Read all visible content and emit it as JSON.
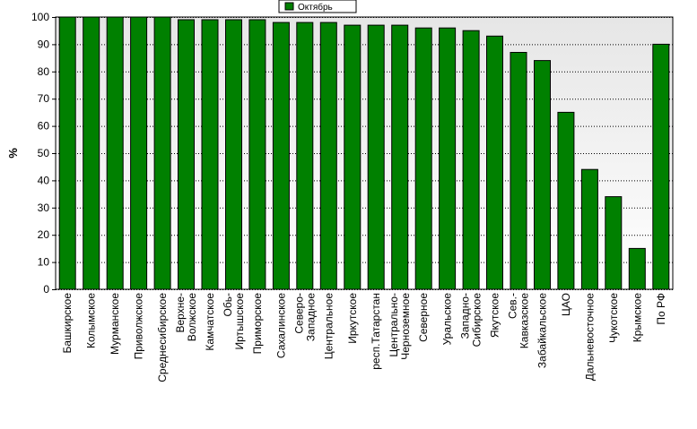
{
  "colors": {
    "bar_fill": "#008000",
    "bar_stroke": "#000000",
    "plot_bg_top": "#e6e6e6",
    "plot_bg_bottom": "#ffffff",
    "grid": "#000000"
  },
  "chart_data": {
    "type": "bar",
    "ylabel": "%",
    "ylim": [
      0,
      100
    ],
    "yticks": [
      0,
      10,
      20,
      30,
      40,
      50,
      60,
      70,
      80,
      90,
      100
    ],
    "grid": true,
    "legend_position": "top-center",
    "categories": [
      [
        "Башкирское"
      ],
      [
        "Колымское"
      ],
      [
        "Мурманское"
      ],
      [
        "Приволжское"
      ],
      [
        "Среднесибирское"
      ],
      [
        "Верхне-",
        "Волжское"
      ],
      [
        "Камчатское"
      ],
      [
        "Обь-",
        "Иртышское"
      ],
      [
        "Приморское"
      ],
      [
        "Сахалинское"
      ],
      [
        "Северо-",
        "Западное"
      ],
      [
        "Центральное"
      ],
      [
        "Иркутское"
      ],
      [
        "респ.Татарстан"
      ],
      [
        "Центрально-",
        "Черноземное"
      ],
      [
        "Северное"
      ],
      [
        "Уральское"
      ],
      [
        "Западно-",
        "Сибирское"
      ],
      [
        "Якутское"
      ],
      [
        "Сев.-",
        "Кавказское"
      ],
      [
        "Забайкальское"
      ],
      [
        "ЦАО"
      ],
      [
        "Дальневосточное"
      ],
      [
        "Чукотское"
      ],
      [
        "Крымское"
      ],
      [
        "По РФ"
      ]
    ],
    "series": [
      {
        "name": "Октябрь",
        "values": [
          100,
          100,
          100,
          100,
          100,
          99,
          99,
          99,
          99,
          98,
          98,
          98,
          97,
          97,
          97,
          96,
          96,
          95,
          93,
          87,
          84,
          65,
          44,
          34,
          15,
          90
        ]
      }
    ]
  }
}
